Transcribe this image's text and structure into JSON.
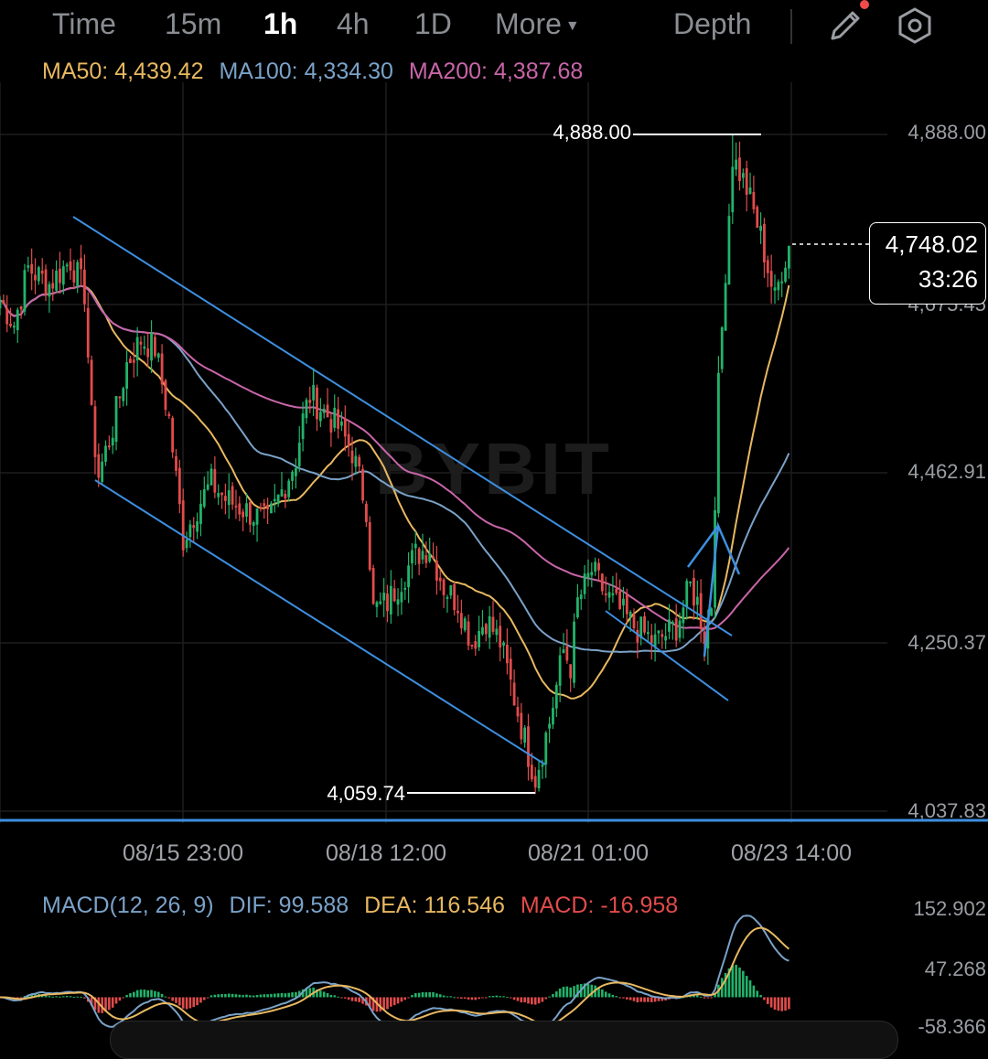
{
  "toolbar": {
    "tabs": [
      "Time",
      "15m",
      "1h",
      "4h",
      "1D"
    ],
    "active_tab": "1h",
    "more_label": "More",
    "depth_label": "Depth",
    "icons": [
      "pencil-icon",
      "settings-hexagon-icon"
    ],
    "notification_dot_color": "#f04b4b"
  },
  "ma_legend": {
    "ma50": "MA50: 4,439.42",
    "ma100": "MA100: 4,334.30",
    "ma200": "MA200: 4,387.68",
    "colors": {
      "ma50": "#e8b860",
      "ma100": "#7aa2c8",
      "ma200": "#c865a8"
    }
  },
  "price_axis": {
    "labels": [
      "4,888.00",
      "4,675.45",
      "4,462.91",
      "4,250.37",
      "4,037.83"
    ]
  },
  "time_axis": {
    "labels": [
      "08/15 23:00",
      "08/18 12:00",
      "08/21 01:00",
      "08/23 14:00"
    ]
  },
  "markers": {
    "high_label": "4,888.00",
    "low_label": "4,059.74"
  },
  "watermark": "BYBIT",
  "current_price": {
    "price": "4,748.02",
    "countdown": "33:26"
  },
  "macd_legend": {
    "params": "MACD(12, 26, 9)",
    "dif": "DIF: 99.588",
    "dea": "DEA: 116.546",
    "macd": "MACD: -16.958",
    "colors": {
      "dif": "#7aa2c8",
      "dea": "#e8b860",
      "macd": "#e14b4b"
    }
  },
  "macd_axis": {
    "labels": [
      "152.902",
      "47.268",
      "-58.366"
    ]
  },
  "colors": {
    "up": "#22b36a",
    "down": "#e14b4b",
    "trendline": "#3d8fe0"
  },
  "chart_data": {
    "type": "candlestick",
    "interval": "1h",
    "ylim": [
      4037.83,
      4888.0
    ],
    "x_tick_labels": [
      "08/15 23:00",
      "08/18 12:00",
      "08/21 01:00",
      "08/23 14:00"
    ],
    "high": 4888.0,
    "low": 4059.74,
    "last_price": 4748.02,
    "close_path": [
      [
        0,
        4680
      ],
      [
        4,
        4650
      ],
      [
        8,
        4720
      ],
      [
        14,
        4700
      ],
      [
        20,
        4730
      ],
      [
        24,
        4690
      ],
      [
        26,
        4530
      ],
      [
        28,
        4460
      ],
      [
        32,
        4520
      ],
      [
        36,
        4600
      ],
      [
        40,
        4630
      ],
      [
        44,
        4620
      ],
      [
        48,
        4530
      ],
      [
        52,
        4380
      ],
      [
        56,
        4420
      ],
      [
        60,
        4450
      ],
      [
        64,
        4430
      ],
      [
        68,
        4420
      ],
      [
        72,
        4410
      ],
      [
        76,
        4400
      ],
      [
        80,
        4440
      ],
      [
        84,
        4480
      ],
      [
        86,
        4530
      ],
      [
        88,
        4560
      ],
      [
        92,
        4540
      ],
      [
        96,
        4520
      ],
      [
        100,
        4490
      ],
      [
        104,
        4420
      ],
      [
        106,
        4290
      ],
      [
        110,
        4300
      ],
      [
        114,
        4330
      ],
      [
        118,
        4360
      ],
      [
        122,
        4370
      ],
      [
        126,
        4320
      ],
      [
        130,
        4300
      ],
      [
        134,
        4250
      ],
      [
        138,
        4280
      ],
      [
        142,
        4250
      ],
      [
        146,
        4180
      ],
      [
        150,
        4110
      ],
      [
        152,
        4080
      ],
      [
        156,
        4150
      ],
      [
        160,
        4240
      ],
      [
        162,
        4220
      ],
      [
        164,
        4300
      ],
      [
        168,
        4340
      ],
      [
        172,
        4310
      ],
      [
        176,
        4290
      ],
      [
        180,
        4270
      ],
      [
        186,
        4250
      ],
      [
        192,
        4270
      ],
      [
        196,
        4320
      ],
      [
        198,
        4300
      ],
      [
        200,
        4260
      ],
      [
        202,
        4300
      ],
      [
        204,
        4570
      ],
      [
        206,
        4720
      ],
      [
        208,
        4860
      ],
      [
        212,
        4820
      ],
      [
        216,
        4760
      ],
      [
        220,
        4680
      ],
      [
        222,
        4720
      ],
      [
        224,
        4748.02
      ]
    ],
    "series": [
      {
        "name": "MA50",
        "values_label": "4,439.42"
      },
      {
        "name": "MA100",
        "values_label": "4,334.30"
      },
      {
        "name": "MA200",
        "values_label": "4,387.68"
      }
    ],
    "macd": {
      "params": "MACD(12, 26, 9)",
      "dif": 99.588,
      "dea": 116.546,
      "hist": -16.958,
      "ylim": [
        -58.366,
        152.902
      ]
    }
  }
}
